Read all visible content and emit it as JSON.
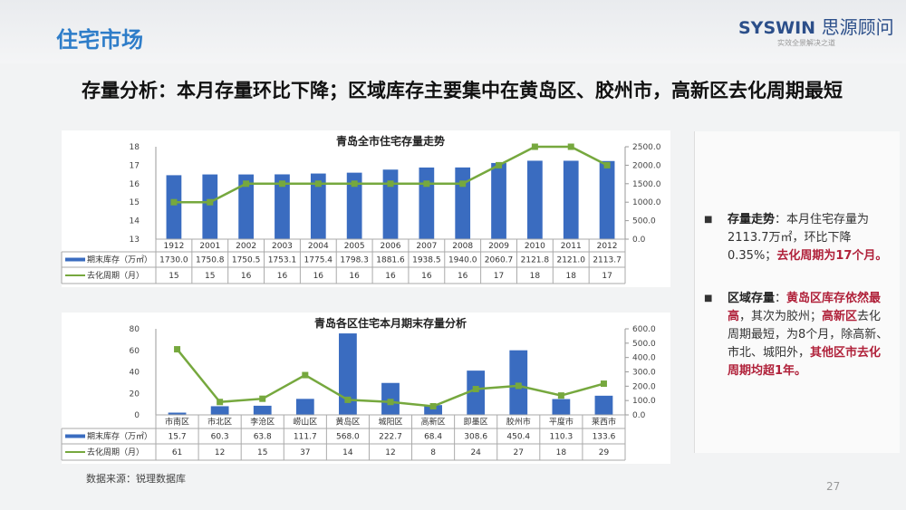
{
  "header": {
    "title": "住宅市场",
    "logo_en": "SYSWIN",
    "logo_cn": "思源顾问",
    "tagline": "实效全景解决之道"
  },
  "headline": "存量分析：本月存量环比下降；区域库存主要集中在黄岛区、胶州市，高新区去化周期最短",
  "chart_data": [
    {
      "type": "bar+line",
      "title": "青岛全市住宅存量走势",
      "categories": [
        "1912",
        "2001",
        "2002",
        "2003",
        "2004",
        "2005",
        "2006",
        "2007",
        "2008",
        "2009",
        "2010",
        "2011",
        "2012"
      ],
      "series": [
        {
          "name": "期末库存（万㎡）",
          "type": "bar",
          "axis": "right",
          "color": "#3a6cc0",
          "values": [
            1730.0,
            1750.8,
            1750.5,
            1753.1,
            1775.4,
            1798.3,
            1881.6,
            1938.5,
            1940.0,
            2060.7,
            2121.8,
            2121.0,
            2113.7
          ]
        },
        {
          "name": "去化周期（月）",
          "type": "line",
          "axis": "left",
          "color": "#76a83e",
          "values": [
            15,
            15,
            16,
            16,
            16,
            16,
            16,
            16,
            16,
            17,
            18,
            18,
            17
          ]
        }
      ],
      "left_axis": {
        "min": 13,
        "max": 18,
        "ticks": [
          "13",
          "14",
          "15",
          "16",
          "17",
          "18"
        ]
      },
      "right_axis": {
        "min": 0,
        "max": 2500,
        "ticks": [
          "0.0",
          "500.0",
          "1000.0",
          "1500.0",
          "2000.0",
          "2500.0"
        ]
      },
      "grid": false,
      "legend": "data-table"
    },
    {
      "type": "bar+line",
      "title": "青岛各区住宅本月期末存量分析",
      "categories": [
        "市南区",
        "市北区",
        "李沧区",
        "崂山区",
        "黄岛区",
        "城阳区",
        "高新区",
        "即墨区",
        "胶州市",
        "平度市",
        "莱西市"
      ],
      "series": [
        {
          "name": "期末库存（万㎡）",
          "type": "bar",
          "axis": "right",
          "color": "#3a6cc0",
          "values": [
            15.7,
            60.3,
            63.8,
            111.7,
            568.0,
            222.7,
            68.4,
            308.6,
            450.4,
            110.3,
            133.6
          ]
        },
        {
          "name": "去化周期（月）",
          "type": "line",
          "axis": "left",
          "color": "#76a83e",
          "values": [
            61,
            12,
            15,
            37,
            14,
            12,
            8,
            24,
            27,
            18,
            29
          ]
        }
      ],
      "left_axis": {
        "min": 0,
        "max": 80,
        "ticks": [
          "0",
          "20",
          "40",
          "60",
          "80"
        ]
      },
      "right_axis": {
        "min": 0,
        "max": 600,
        "ticks": [
          "0.0",
          "100.0",
          "200.0",
          "300.0",
          "400.0",
          "500.0",
          "600.0"
        ]
      },
      "grid": false,
      "legend": "data-table"
    }
  ],
  "panel": {
    "b1": {
      "label": "存量走势",
      "sep": "：",
      "text": "本月住宅存量为2113.7万㎡，环比下降0.35%；",
      "red": "去化周期为17个月。"
    },
    "b2": {
      "label": "区域存量",
      "sep": "：",
      "red1": "黄岛区库存依然最高",
      "t1": "，其次为胶州；",
      "red2": "高新区",
      "t2": "去化周期最短，为8个月，除高新、市北、城阳外，",
      "red3": "其他区市去化周期均超1年。"
    }
  },
  "footer": {
    "source": "数据来源：锐理数据库",
    "page": "27"
  }
}
